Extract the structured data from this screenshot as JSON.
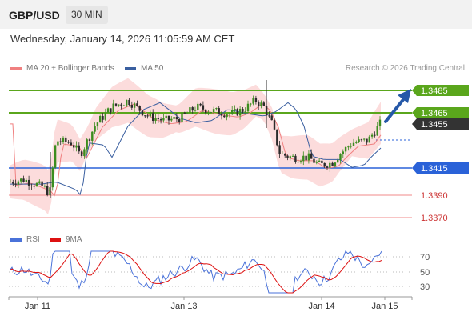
{
  "header": {
    "pair": "GBP/USD",
    "timeframe": "30 MIN"
  },
  "date_line": "Wednesday, January 14, 2026 11:05:59 AM CET",
  "legend": {
    "ma20": {
      "label": "MA 20 + Bollinger Bands",
      "color": "#f08080"
    },
    "ma50": {
      "label": "MA 50",
      "color": "#3a5fa0"
    }
  },
  "credit": "Research © 2026 Trading Central",
  "price_levels": [
    {
      "label": "1.3485",
      "kind": "resistance",
      "color": "#5aa61c"
    },
    {
      "label": "1.3465",
      "kind": "resistance",
      "color": "#5aa61c"
    },
    {
      "label": "1.3455",
      "kind": "current",
      "color": "#333333"
    },
    {
      "label": "1.3415",
      "kind": "pivot",
      "color": "#2a62d8"
    },
    {
      "label": "1.3390",
      "kind": "support",
      "color": "#cc3333"
    },
    {
      "label": "1.3370",
      "kind": "support",
      "color": "#cc3333"
    }
  ],
  "rsi": {
    "rsi_label": "RSI",
    "rsi_color": "#4a72d9",
    "ma_label": "9MA",
    "ma_color": "#dd1111",
    "levels": [
      "70",
      "50",
      "30"
    ]
  },
  "x_axis": {
    "labels": [
      "Jan 11",
      "Jan 13",
      "Jan 14",
      "Jan 15"
    ]
  },
  "colors": {
    "up": "#3c8d1f",
    "down": "#2b2b2b",
    "band": "#fbd6d6",
    "arrow": "#2558a8"
  }
}
